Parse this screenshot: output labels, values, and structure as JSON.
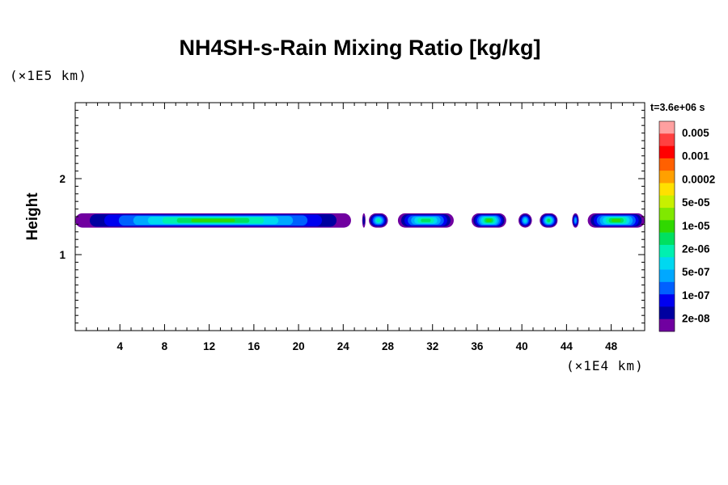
{
  "chart_data": {
    "type": "heatmap",
    "title": "NH4SH-s-Rain Mixing Ratio [kg/kg]",
    "ylabel": "Height",
    "x_unit_label": "(×1E4 km)",
    "y_unit_label": "(×1E5 km)",
    "time_label": "t=3.6e+06 s",
    "xlim": [
      0,
      51
    ],
    "ylim": [
      0,
      3
    ],
    "x_ticks": [
      "4",
      "8",
      "12",
      "16",
      "20",
      "24",
      "28",
      "32",
      "36",
      "40",
      "44",
      "48"
    ],
    "x_tick_values": [
      4,
      8,
      12,
      16,
      20,
      24,
      28,
      32,
      36,
      40,
      44,
      48
    ],
    "y_ticks": [
      "1",
      "2"
    ],
    "y_tick_values": [
      1,
      2
    ],
    "colorbar": {
      "labels": [
        "0.005",
        "0.001",
        "0.0002",
        "5e-05",
        "1e-05",
        "2e-06",
        "5e-07",
        "1e-07",
        "2e-08"
      ],
      "colors_top_to_bottom": [
        "#ffa0a0",
        "#ff4040",
        "#ff0000",
        "#ff6000",
        "#ffa000",
        "#ffe000",
        "#c8f000",
        "#80e800",
        "#30d800",
        "#00e060",
        "#00f0b0",
        "#00d8f0",
        "#00a8ff",
        "#0060ff",
        "#0000f0",
        "#0000a0",
        "#7000a0"
      ]
    },
    "cloud_band": {
      "height_center": 1.45,
      "height_thickness": 0.18,
      "segments": [
        {
          "x_start": 0.0,
          "x_end": 24.7,
          "max_level": 8
        },
        {
          "x_start": 25.7,
          "x_end": 26.0,
          "max_level": 1
        },
        {
          "x_start": 26.3,
          "x_end": 28.0,
          "max_level": 6
        },
        {
          "x_start": 28.9,
          "x_end": 33.9,
          "max_level": 7
        },
        {
          "x_start": 35.5,
          "x_end": 38.6,
          "max_level": 8
        },
        {
          "x_start": 39.7,
          "x_end": 40.9,
          "max_level": 5
        },
        {
          "x_start": 41.6,
          "x_end": 43.2,
          "max_level": 7
        },
        {
          "x_start": 44.5,
          "x_end": 45.1,
          "max_level": 4
        },
        {
          "x_start": 45.9,
          "x_end": 51.0,
          "max_level": 8
        }
      ]
    }
  }
}
